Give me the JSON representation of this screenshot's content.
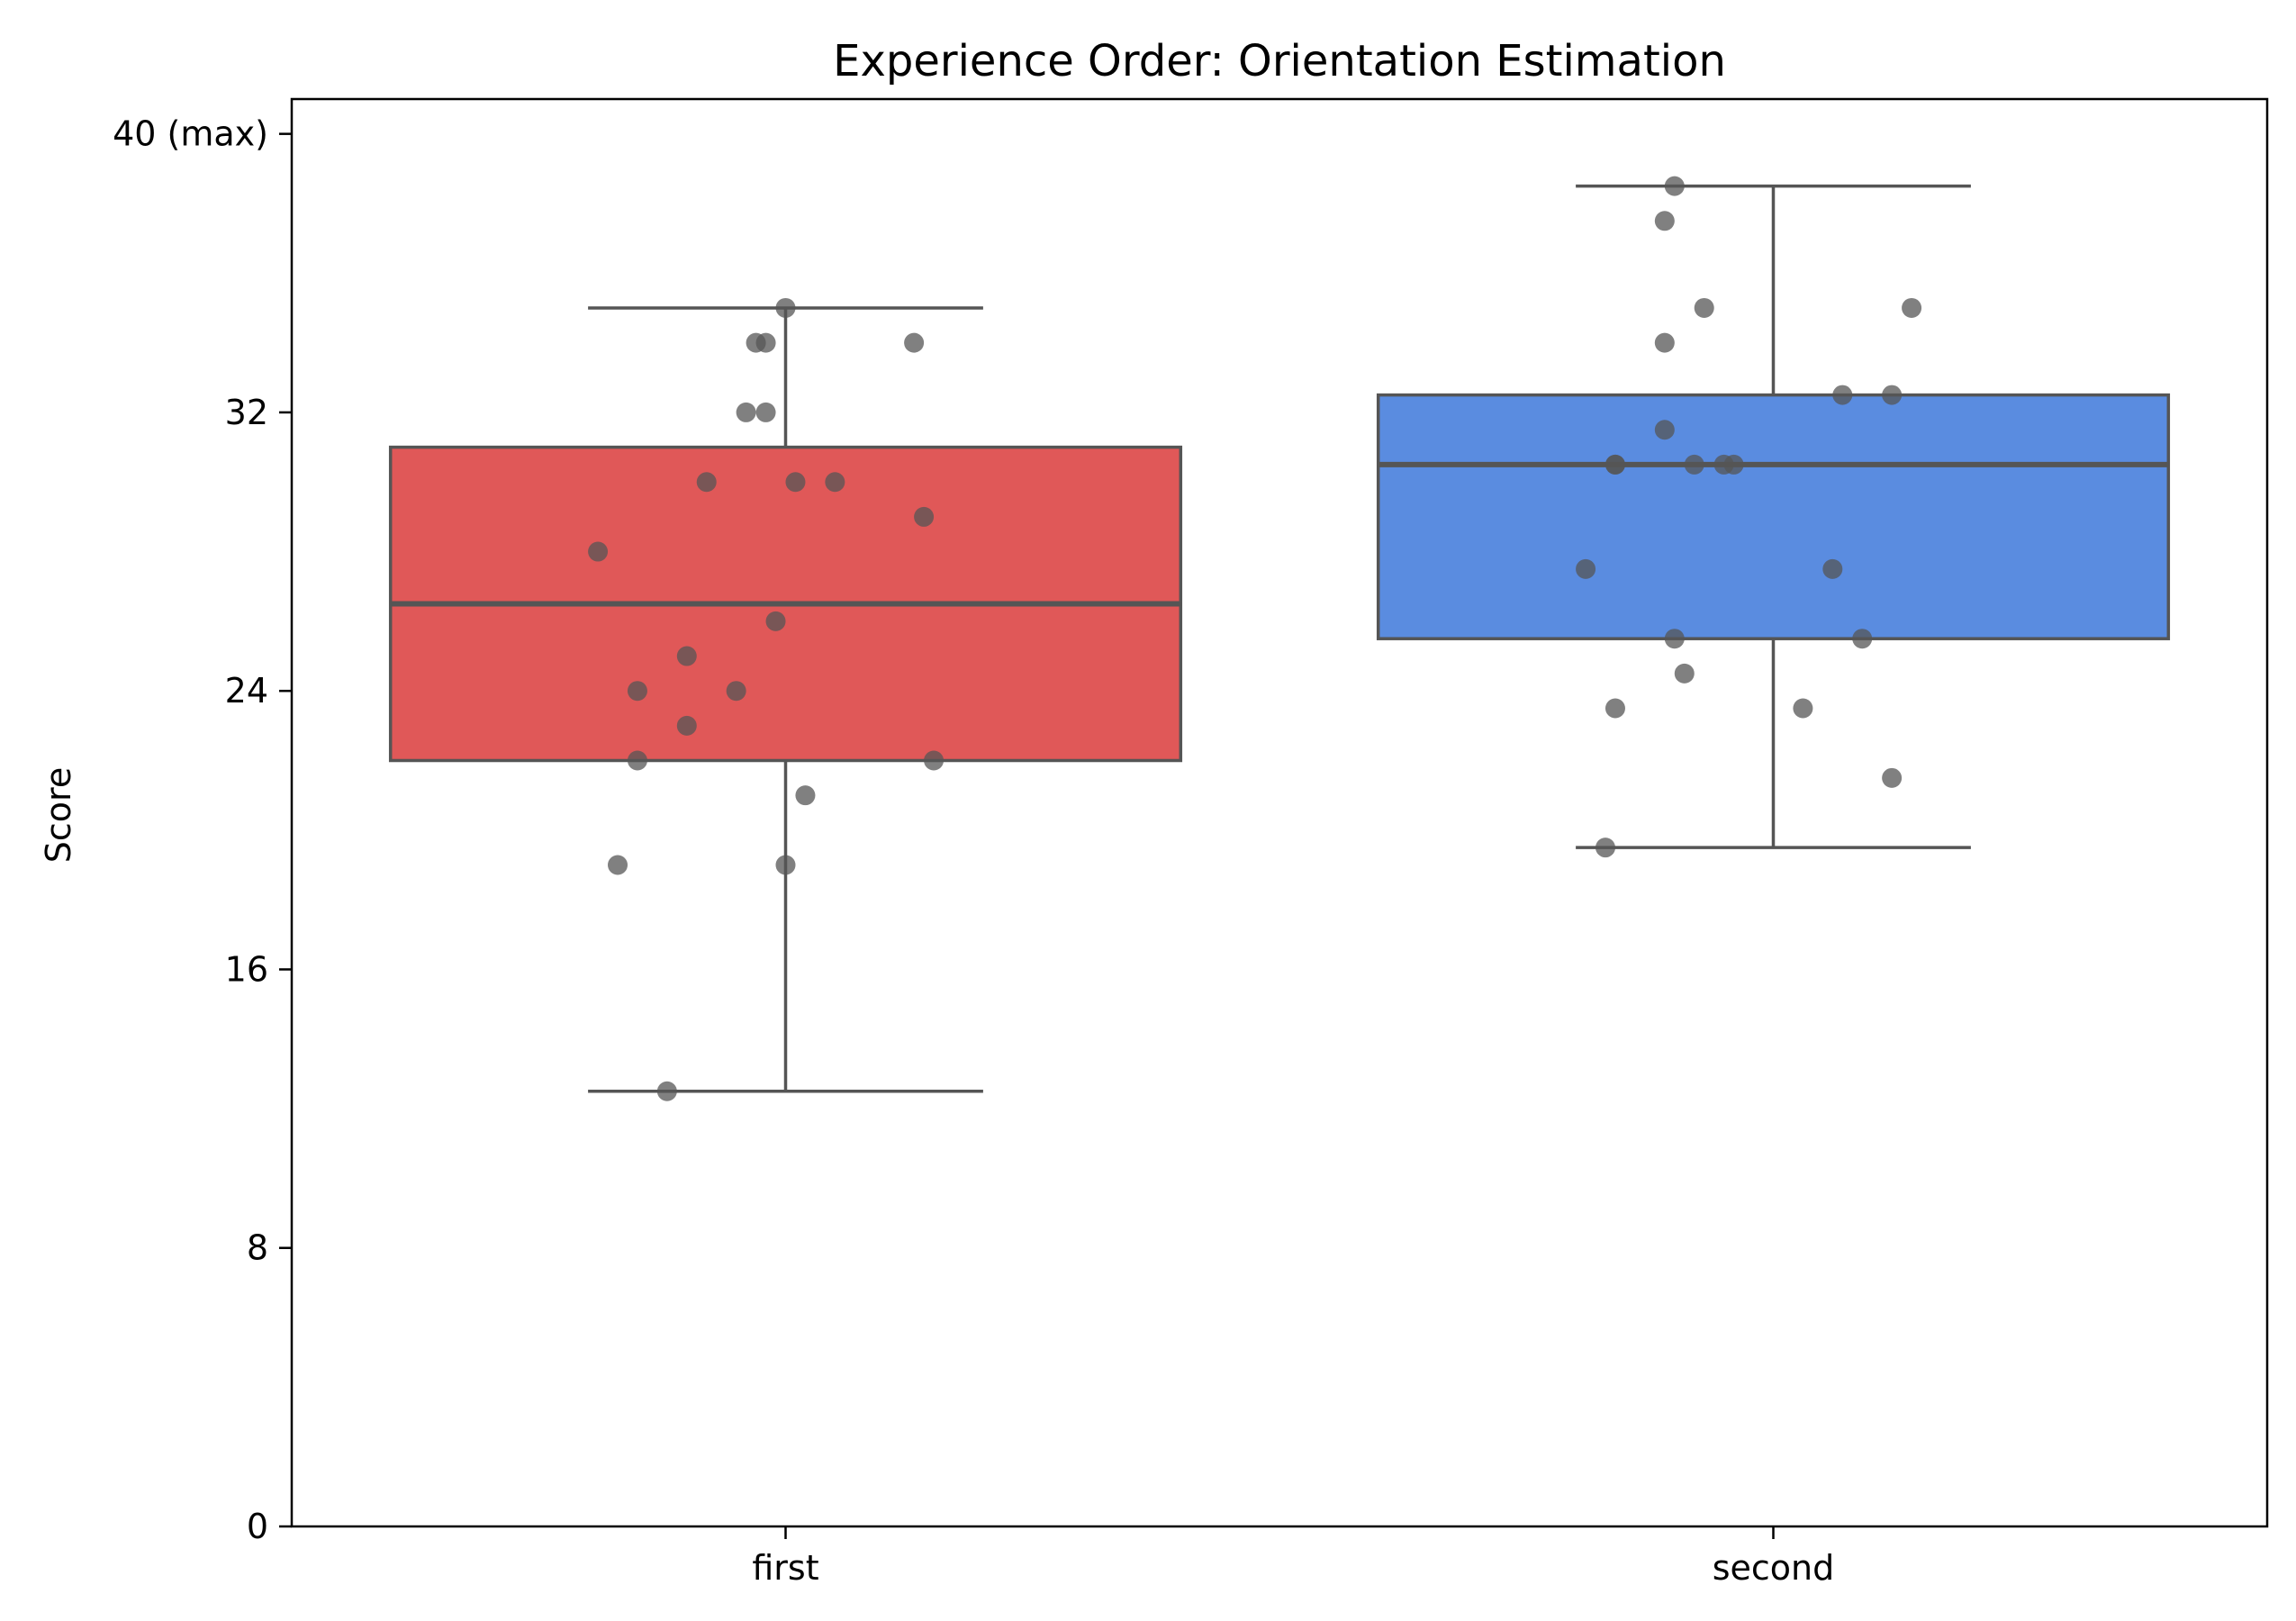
{
  "chart_data": {
    "type": "box",
    "title": "Experience Order: Orientation Estimation",
    "ylabel": "Score",
    "xlabel": "",
    "ylim": [
      0,
      41
    ],
    "yticks": [
      {
        "value": 0,
        "label": "0"
      },
      {
        "value": 8,
        "label": "8"
      },
      {
        "value": 16,
        "label": "16"
      },
      {
        "value": 24,
        "label": "24"
      },
      {
        "value": 32,
        "label": "32"
      },
      {
        "value": 40,
        "label": "40 (max)"
      }
    ],
    "grid": false,
    "categories": [
      "first",
      "second"
    ],
    "boxes": [
      {
        "category": "first",
        "color": "#e05858",
        "whisker_low": 12.5,
        "q1": 22,
        "median": 26.5,
        "q3": 31,
        "whisker_high": 35,
        "points": [
          {
            "jitter": 0.0,
            "value": 35
          },
          {
            "jitter": -0.03,
            "value": 34
          },
          {
            "jitter": -0.02,
            "value": 34
          },
          {
            "jitter": 0.13,
            "value": 34
          },
          {
            "jitter": -0.04,
            "value": 32
          },
          {
            "jitter": -0.02,
            "value": 32
          },
          {
            "jitter": -0.08,
            "value": 30
          },
          {
            "jitter": 0.01,
            "value": 30
          },
          {
            "jitter": 0.05,
            "value": 30
          },
          {
            "jitter": 0.14,
            "value": 29
          },
          {
            "jitter": -0.19,
            "value": 28
          },
          {
            "jitter": -0.01,
            "value": 26
          },
          {
            "jitter": -0.1,
            "value": 25
          },
          {
            "jitter": -0.15,
            "value": 24
          },
          {
            "jitter": -0.05,
            "value": 24
          },
          {
            "jitter": -0.1,
            "value": 23
          },
          {
            "jitter": -0.15,
            "value": 22
          },
          {
            "jitter": 0.15,
            "value": 22
          },
          {
            "jitter": 0.02,
            "value": 21
          },
          {
            "jitter": -0.17,
            "value": 19
          },
          {
            "jitter": 0.0,
            "value": 19
          },
          {
            "jitter": -0.12,
            "value": 12.5
          }
        ]
      },
      {
        "category": "second",
        "color": "#5a8ce0",
        "whisker_low": 19.5,
        "q1": 25.5,
        "median": 30.5,
        "q3": 32.5,
        "whisker_high": 38.5,
        "points": [
          {
            "jitter": -0.1,
            "value": 38.5
          },
          {
            "jitter": -0.11,
            "value": 37.5
          },
          {
            "jitter": -0.07,
            "value": 35
          },
          {
            "jitter": 0.14,
            "value": 35
          },
          {
            "jitter": -0.11,
            "value": 34
          },
          {
            "jitter": 0.07,
            "value": 32.5
          },
          {
            "jitter": 0.12,
            "value": 32.5
          },
          {
            "jitter": -0.11,
            "value": 31.5
          },
          {
            "jitter": -0.16,
            "value": 30.5
          },
          {
            "jitter": -0.16,
            "value": 30.5
          },
          {
            "jitter": -0.08,
            "value": 30.5
          },
          {
            "jitter": -0.05,
            "value": 30.5
          },
          {
            "jitter": -0.04,
            "value": 30.5
          },
          {
            "jitter": -0.19,
            "value": 27.5
          },
          {
            "jitter": 0.06,
            "value": 27.5
          },
          {
            "jitter": -0.1,
            "value": 25.5
          },
          {
            "jitter": 0.09,
            "value": 25.5
          },
          {
            "jitter": -0.09,
            "value": 24.5
          },
          {
            "jitter": -0.16,
            "value": 23.5
          },
          {
            "jitter": 0.03,
            "value": 23.5
          },
          {
            "jitter": 0.12,
            "value": 21.5
          },
          {
            "jitter": -0.17,
            "value": 19.5
          }
        ]
      }
    ],
    "point_color": "#555555"
  }
}
